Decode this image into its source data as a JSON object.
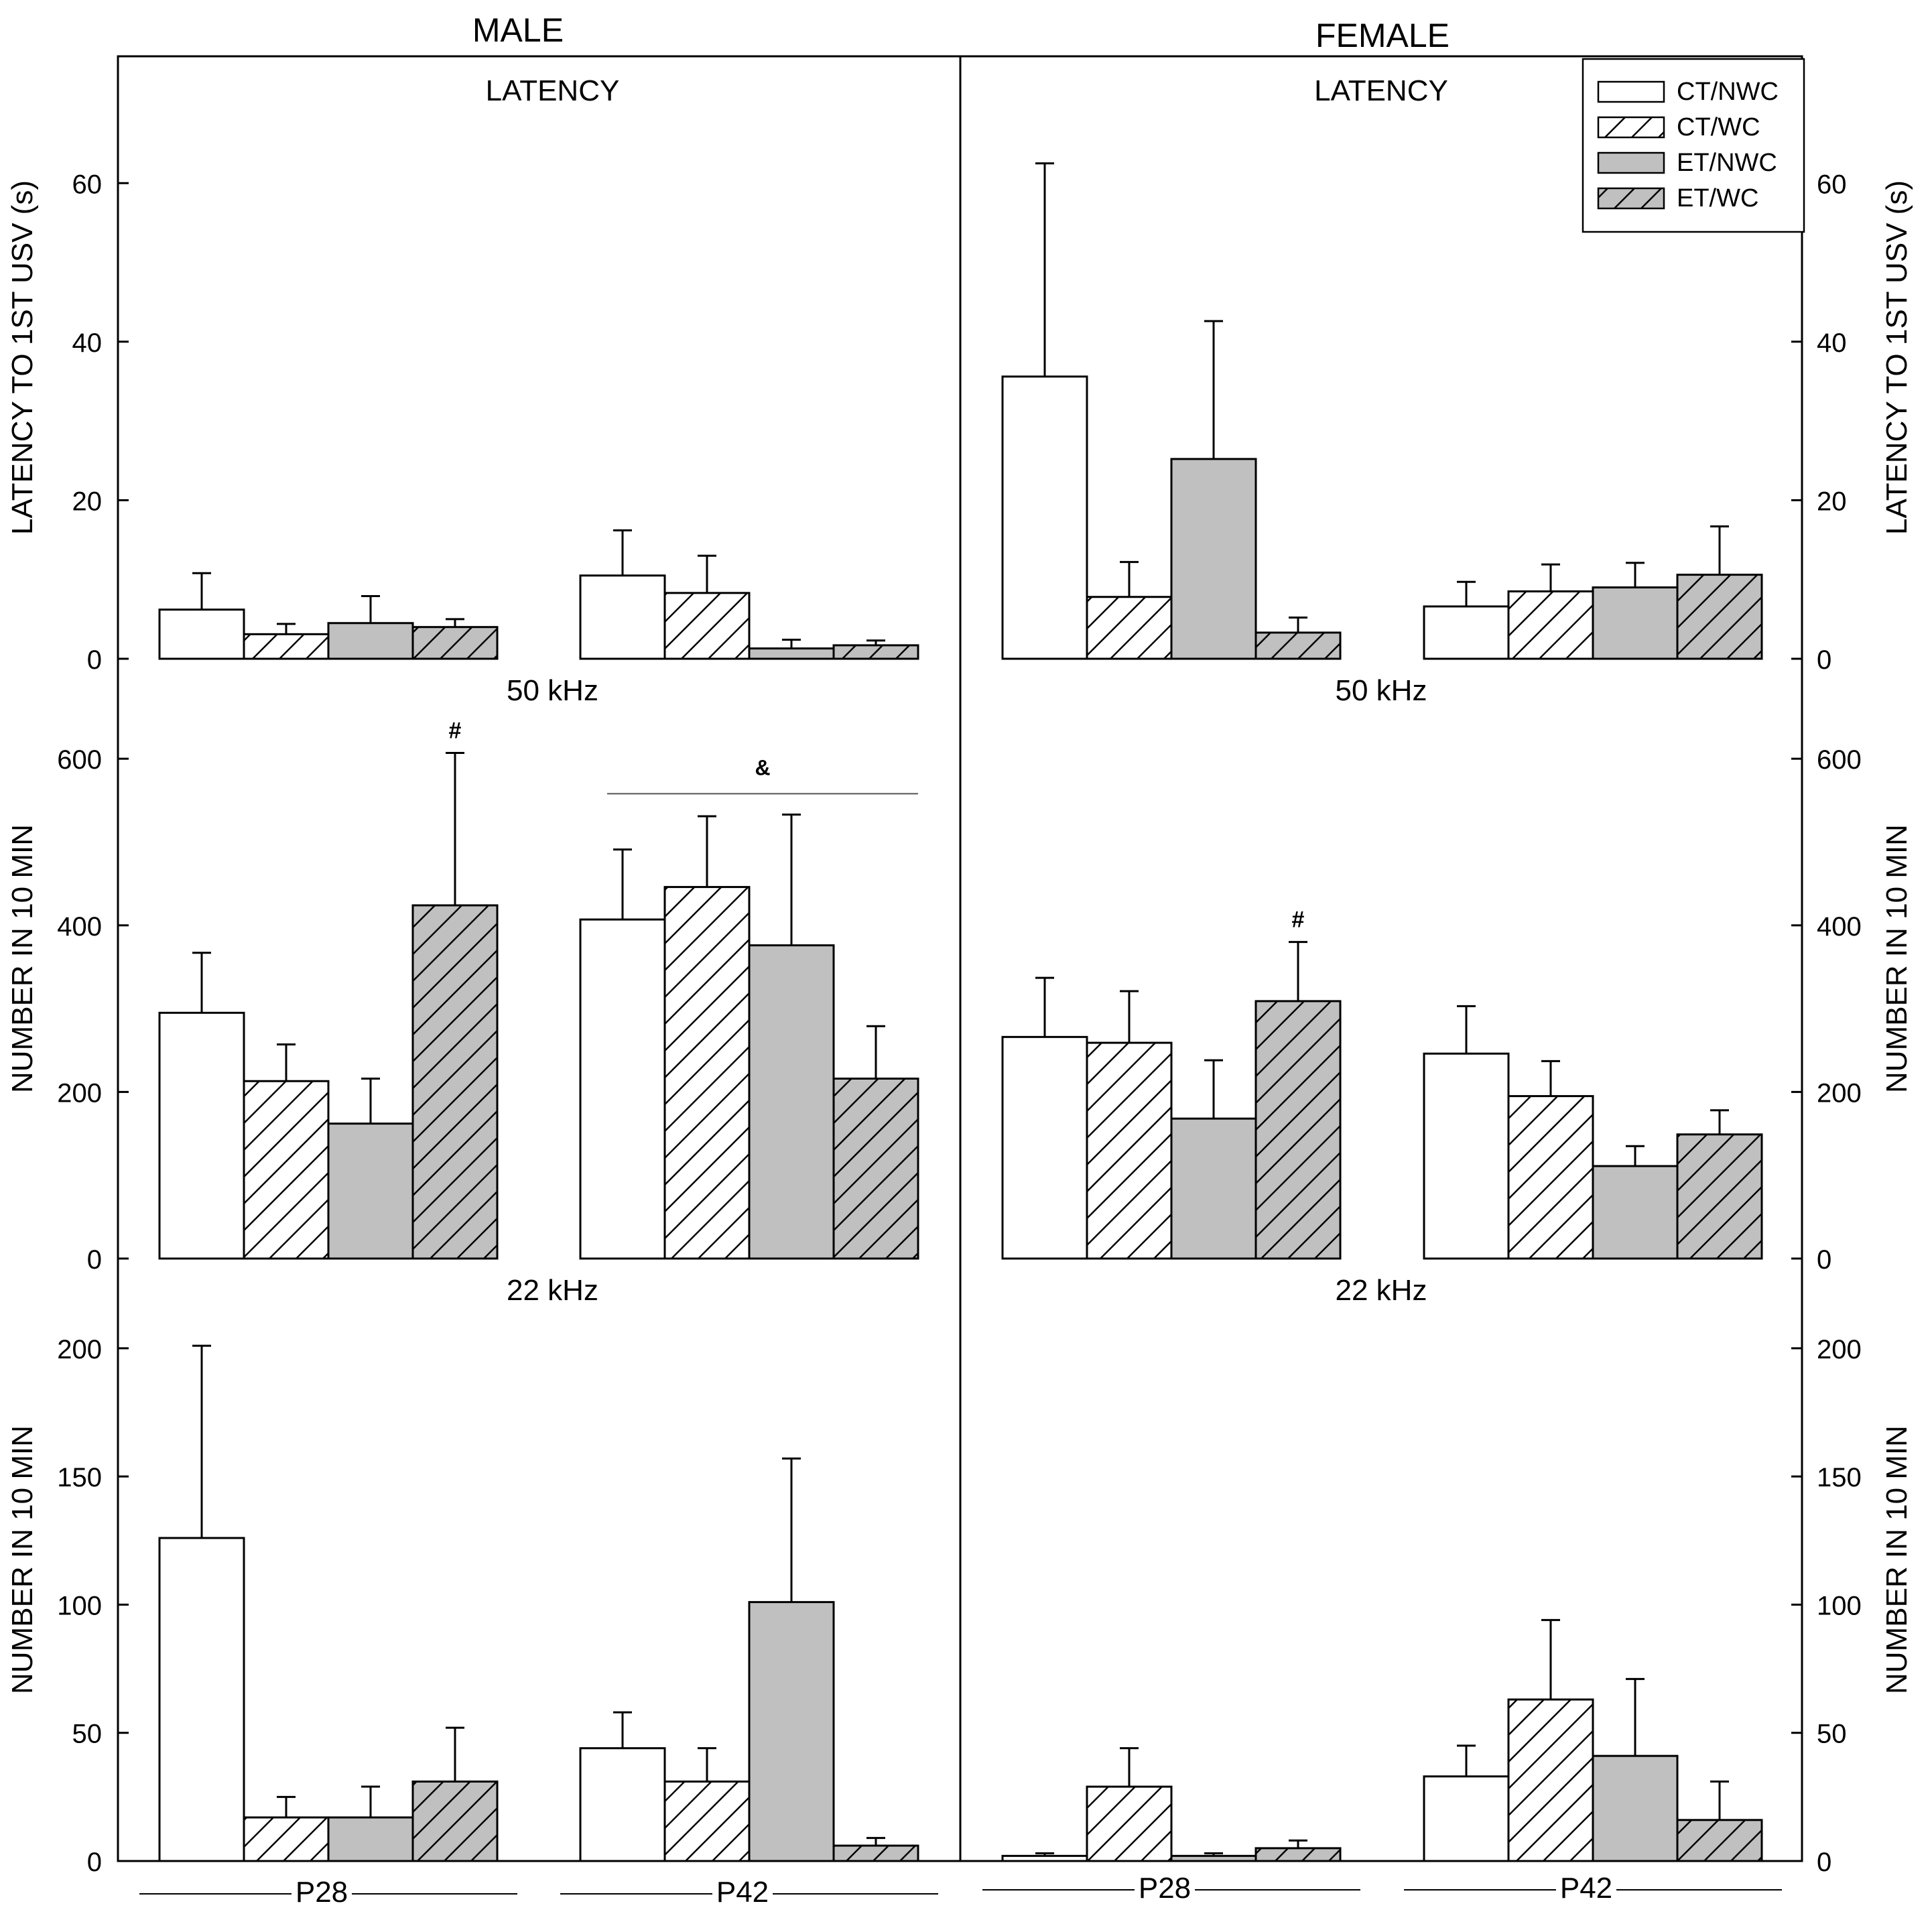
{
  "figure": {
    "male_heading": "MALE",
    "female_heading": "FEMALE"
  },
  "legend": [
    {
      "label": "CT/NWC",
      "fill": "white",
      "hatch": false
    },
    {
      "label": "CT/WC",
      "fill": "white",
      "hatch": true
    },
    {
      "label": "ET/NWC",
      "fill": "gray",
      "hatch": false
    },
    {
      "label": "ET/WC",
      "fill": "gray",
      "hatch": true
    }
  ],
  "colors": {
    "white_fill": "#ffffff",
    "gray_fill": "#c0c0c0",
    "hatch_line": "#000000",
    "axis": "#000000"
  },
  "x_groups": [
    "P28",
    "P42"
  ],
  "chart_data": [
    {
      "type": "bar",
      "sex": "MALE",
      "title": "LATENCY",
      "ylabel": "LATENCY TO 1ST USV (s)",
      "ylim": [
        0,
        76
      ],
      "yticks": [
        0,
        20,
        40,
        60
      ],
      "categories": [
        "P28",
        "P42"
      ],
      "series": [
        {
          "name": "CT/NWC",
          "values": [
            6.2,
            10.5
          ],
          "errors": [
            4.6,
            5.7
          ]
        },
        {
          "name": "CT/WC",
          "values": [
            3.1,
            8.3
          ],
          "errors": [
            1.3,
            4.7
          ]
        },
        {
          "name": "ET/NWC",
          "values": [
            4.5,
            1.3
          ],
          "errors": [
            3.4,
            1.1
          ]
        },
        {
          "name": "ET/WC",
          "values": [
            4.0,
            1.7
          ],
          "errors": [
            1.0,
            0.6
          ]
        }
      ],
      "annotations": []
    },
    {
      "type": "bar",
      "sex": "FEMALE",
      "title": "LATENCY",
      "ylabel": "LATENCY TO 1ST USV (s)",
      "ylim": [
        0,
        76
      ],
      "yticks": [
        0,
        20,
        40,
        60
      ],
      "categories": [
        "P28",
        "P42"
      ],
      "series": [
        {
          "name": "CT/NWC",
          "values": [
            35.6,
            6.6
          ],
          "errors": [
            26.9,
            3.1
          ]
        },
        {
          "name": "CT/WC",
          "values": [
            7.8,
            8.5
          ],
          "errors": [
            4.4,
            3.4
          ]
        },
        {
          "name": "ET/NWC",
          "values": [
            25.2,
            9.0
          ],
          "errors": [
            17.4,
            3.1
          ]
        },
        {
          "name": "ET/WC",
          "values": [
            3.3,
            10.6
          ],
          "errors": [
            1.9,
            6.1
          ]
        }
      ],
      "annotations": []
    },
    {
      "type": "bar",
      "sex": "MALE",
      "title": "50 kHz",
      "ylabel": "NUMBER IN 10 MIN",
      "ylim": [
        0,
        720
      ],
      "yticks": [
        0,
        200,
        400,
        600
      ],
      "categories": [
        "P28",
        "P42"
      ],
      "series": [
        {
          "name": "CT/NWC",
          "values": [
            295,
            407
          ],
          "errors": [
            72,
            84
          ]
        },
        {
          "name": "CT/WC",
          "values": [
            213,
            446
          ],
          "errors": [
            44,
            85
          ]
        },
        {
          "name": "ET/NWC",
          "values": [
            162,
            376
          ],
          "errors": [
            54,
            157
          ]
        },
        {
          "name": "ET/WC",
          "values": [
            424,
            216
          ],
          "errors": [
            183,
            63
          ]
        }
      ],
      "annotations": [
        {
          "text": "#",
          "group": 0,
          "series": 3
        },
        {
          "text": "&",
          "group": 1,
          "line_value": 558
        }
      ]
    },
    {
      "type": "bar",
      "sex": "FEMALE",
      "title": "50 kHz",
      "ylabel": "NUMBER IN 10 MIN",
      "ylim": [
        0,
        720
      ],
      "yticks": [
        0,
        200,
        400,
        600
      ],
      "categories": [
        "P28",
        "P42"
      ],
      "series": [
        {
          "name": "CT/NWC",
          "values": [
            266,
            246
          ],
          "errors": [
            71,
            57
          ]
        },
        {
          "name": "CT/WC",
          "values": [
            259,
            195
          ],
          "errors": [
            62,
            42
          ]
        },
        {
          "name": "ET/NWC",
          "values": [
            168,
            111
          ],
          "errors": [
            70,
            24
          ]
        },
        {
          "name": "ET/WC",
          "values": [
            309,
            149
          ],
          "errors": [
            71,
            29
          ]
        }
      ],
      "annotations": [
        {
          "text": "#",
          "group": 0,
          "series": 3
        }
      ]
    },
    {
      "type": "bar",
      "sex": "MALE",
      "title": "22 kHz",
      "ylabel": "NUMBER IN 10 MIN",
      "ylim": [
        0,
        235
      ],
      "yticks": [
        0,
        50,
        100,
        150,
        200
      ],
      "categories": [
        "P28",
        "P42"
      ],
      "series": [
        {
          "name": "CT/NWC",
          "values": [
            126,
            44
          ],
          "errors": [
            75,
            14
          ]
        },
        {
          "name": "CT/WC",
          "values": [
            17,
            31
          ],
          "errors": [
            8,
            13
          ]
        },
        {
          "name": "ET/NWC",
          "values": [
            17,
            101
          ],
          "errors": [
            12,
            56
          ]
        },
        {
          "name": "ET/WC",
          "values": [
            31,
            6
          ],
          "errors": [
            21,
            3
          ]
        }
      ],
      "annotations": []
    },
    {
      "type": "bar",
      "sex": "FEMALE",
      "title": "22 kHz",
      "ylabel": "NUMBER IN 10 MIN",
      "ylim": [
        0,
        235
      ],
      "yticks": [
        0,
        50,
        100,
        150,
        200
      ],
      "categories": [
        "P28",
        "P42"
      ],
      "series": [
        {
          "name": "CT/NWC",
          "values": [
            2,
            33
          ],
          "errors": [
            1,
            12
          ]
        },
        {
          "name": "CT/WC",
          "values": [
            29,
            63
          ],
          "errors": [
            15,
            31
          ]
        },
        {
          "name": "ET/NWC",
          "values": [
            2,
            41
          ],
          "errors": [
            1,
            30
          ]
        },
        {
          "name": "ET/WC",
          "values": [
            5,
            16
          ],
          "errors": [
            3,
            15
          ]
        }
      ],
      "annotations": []
    }
  ]
}
